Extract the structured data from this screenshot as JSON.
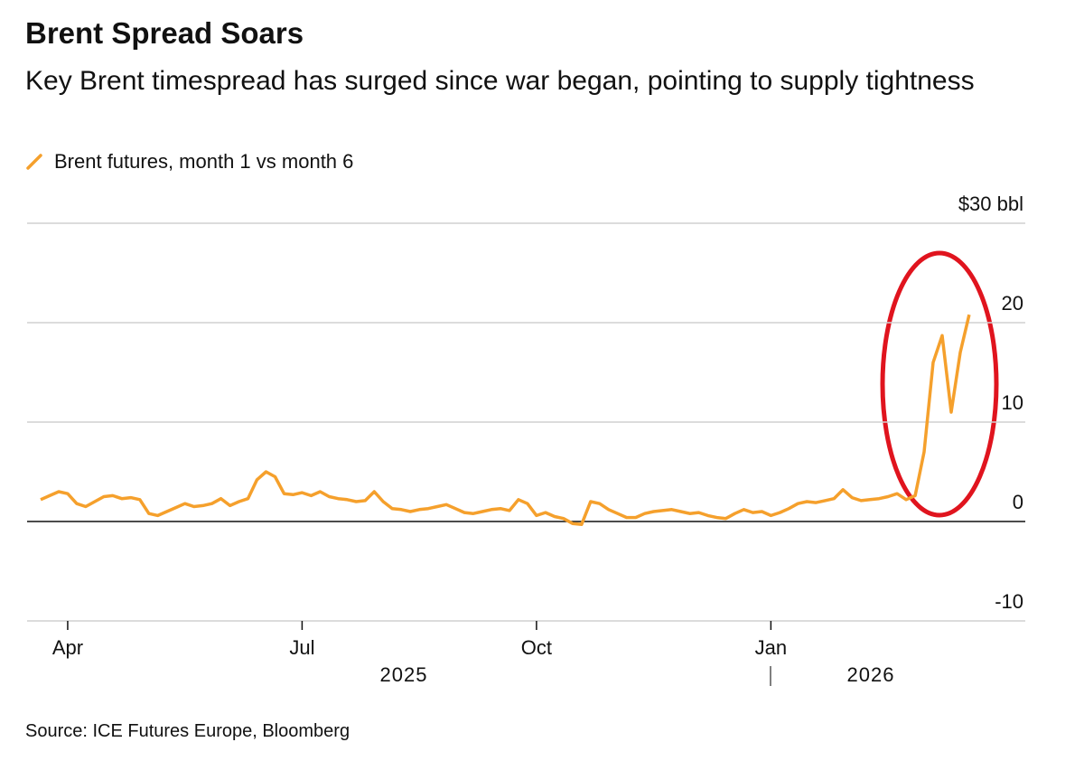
{
  "chart_data": {
    "type": "line",
    "title": "Brent Spread Soars",
    "subtitle": "Key Brent timespread has surged since war began, pointing to supply tightness",
    "source": "Source: ICE Futures Europe, Bloomberg",
    "year_labels": [
      "2025",
      "2026"
    ],
    "categories": [
      null,
      null,
      null,
      "Apr",
      null,
      null,
      null,
      null,
      null,
      null,
      null,
      null,
      null,
      null,
      null,
      null,
      null,
      null,
      null,
      null,
      null,
      null,
      null,
      null,
      null,
      null,
      null,
      null,
      null,
      "Jul",
      null,
      null,
      null,
      null,
      null,
      null,
      null,
      null,
      null,
      null,
      null,
      null,
      null,
      null,
      null,
      null,
      null,
      null,
      null,
      null,
      null,
      null,
      null,
      null,
      null,
      "Oct",
      null,
      null,
      null,
      null,
      null,
      null,
      null,
      null,
      null,
      null,
      null,
      null,
      null,
      null,
      null,
      null,
      null,
      null,
      null,
      null,
      null,
      null,
      null,
      null,
      null,
      "Jan",
      null,
      null,
      null,
      null,
      null,
      null,
      null,
      null,
      null,
      null,
      null,
      null,
      null,
      null,
      null,
      null,
      null,
      null,
      null,
      null,
      null,
      null
    ],
    "series": [
      {
        "name": "Brent futures, month 1 vs month 6",
        "color": "#f5a02c",
        "values": [
          2.2,
          2.6,
          3.0,
          2.8,
          1.8,
          1.5,
          2.0,
          2.5,
          2.6,
          2.3,
          2.4,
          2.2,
          0.8,
          0.6,
          1.0,
          1.4,
          1.8,
          1.5,
          1.6,
          1.8,
          2.3,
          1.6,
          2.0,
          2.3,
          4.2,
          5.0,
          4.5,
          2.8,
          2.7,
          2.9,
          2.6,
          3.0,
          2.5,
          2.3,
          2.2,
          2.0,
          2.1,
          3.0,
          2.0,
          1.3,
          1.2,
          1.0,
          1.2,
          1.3,
          1.5,
          1.7,
          1.3,
          0.9,
          0.8,
          1.0,
          1.2,
          1.3,
          1.1,
          2.2,
          1.8,
          0.6,
          0.9,
          0.5,
          0.3,
          -0.2,
          -0.3,
          2.0,
          1.8,
          1.2,
          0.8,
          0.4,
          0.4,
          0.8,
          1.0,
          1.1,
          1.2,
          1.0,
          0.8,
          0.9,
          0.6,
          0.4,
          0.3,
          0.8,
          1.2,
          0.9,
          1.0,
          0.6,
          0.9,
          1.3,
          1.8,
          2.0,
          1.9,
          2.1,
          2.3,
          3.2,
          2.4,
          2.1,
          2.2,
          2.3,
          2.5,
          2.8,
          2.2,
          2.6,
          7.0,
          16.0,
          18.7,
          11.0,
          17.0,
          20.8
        ]
      }
    ],
    "ylim": [
      -10,
      30
    ],
    "yticks": [
      {
        "value": 30,
        "label": "$30 bbl"
      },
      20,
      10,
      0,
      -10
    ],
    "grid": true
  }
}
